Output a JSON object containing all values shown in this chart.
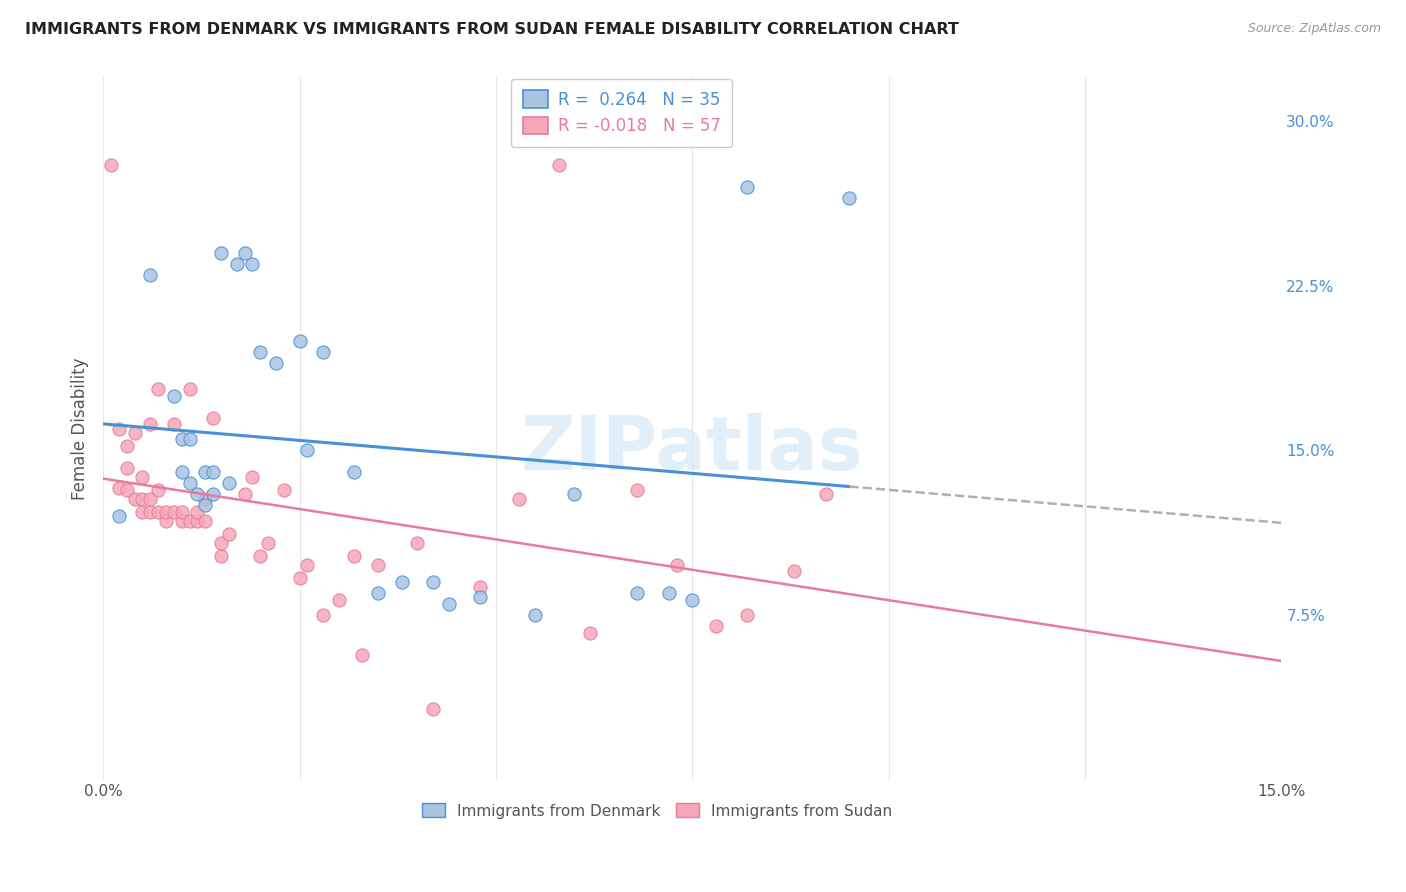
{
  "title": "IMMIGRANTS FROM DENMARK VS IMMIGRANTS FROM SUDAN FEMALE DISABILITY CORRELATION CHART",
  "source": "Source: ZipAtlas.com",
  "ylabel": "Female Disability",
  "right_yticks": [
    "7.5%",
    "15.0%",
    "22.5%",
    "30.0%"
  ],
  "right_ytick_vals": [
    0.075,
    0.15,
    0.225,
    0.3
  ],
  "xlim": [
    0.0,
    0.15
  ],
  "ylim": [
    0.0,
    0.32
  ],
  "color_denmark": "#a8c4e0",
  "color_sudan": "#f4a8b8",
  "line_color_denmark": "#4a90d9",
  "line_color_sudan": "#e87a9a",
  "line_dash_color": "#b0b0b0",
  "watermark": "ZIPatlas",
  "denmark_x": [
    0.002,
    0.006,
    0.009,
    0.01,
    0.01,
    0.011,
    0.011,
    0.012,
    0.013,
    0.013,
    0.014,
    0.014,
    0.015,
    0.016,
    0.017,
    0.018,
    0.019,
    0.02,
    0.022,
    0.025,
    0.026,
    0.028,
    0.032,
    0.035,
    0.038,
    0.042,
    0.044,
    0.048,
    0.055,
    0.06,
    0.068,
    0.072,
    0.075,
    0.082,
    0.095
  ],
  "denmark_y": [
    0.12,
    0.23,
    0.175,
    0.155,
    0.14,
    0.155,
    0.135,
    0.13,
    0.14,
    0.125,
    0.13,
    0.14,
    0.24,
    0.135,
    0.235,
    0.24,
    0.235,
    0.195,
    0.19,
    0.2,
    0.15,
    0.195,
    0.14,
    0.085,
    0.09,
    0.09,
    0.08,
    0.083,
    0.075,
    0.13,
    0.085,
    0.085,
    0.082,
    0.27,
    0.265
  ],
  "sudan_x": [
    0.001,
    0.002,
    0.002,
    0.003,
    0.003,
    0.003,
    0.004,
    0.004,
    0.005,
    0.005,
    0.005,
    0.006,
    0.006,
    0.006,
    0.007,
    0.007,
    0.007,
    0.008,
    0.008,
    0.009,
    0.009,
    0.01,
    0.01,
    0.011,
    0.011,
    0.012,
    0.012,
    0.013,
    0.013,
    0.014,
    0.015,
    0.015,
    0.016,
    0.018,
    0.019,
    0.02,
    0.021,
    0.023,
    0.025,
    0.026,
    0.028,
    0.03,
    0.032,
    0.033,
    0.035,
    0.04,
    0.042,
    0.048,
    0.053,
    0.058,
    0.062,
    0.068,
    0.073,
    0.078,
    0.082,
    0.088,
    0.092
  ],
  "sudan_y": [
    0.28,
    0.133,
    0.16,
    0.132,
    0.142,
    0.152,
    0.128,
    0.158,
    0.122,
    0.128,
    0.138,
    0.122,
    0.128,
    0.162,
    0.122,
    0.132,
    0.178,
    0.118,
    0.122,
    0.122,
    0.162,
    0.118,
    0.122,
    0.118,
    0.178,
    0.118,
    0.122,
    0.118,
    0.128,
    0.165,
    0.102,
    0.108,
    0.112,
    0.13,
    0.138,
    0.102,
    0.108,
    0.132,
    0.092,
    0.098,
    0.075,
    0.082,
    0.102,
    0.057,
    0.098,
    0.108,
    0.032,
    0.088,
    0.128,
    0.28,
    0.067,
    0.132,
    0.098,
    0.07,
    0.075,
    0.095,
    0.13
  ]
}
